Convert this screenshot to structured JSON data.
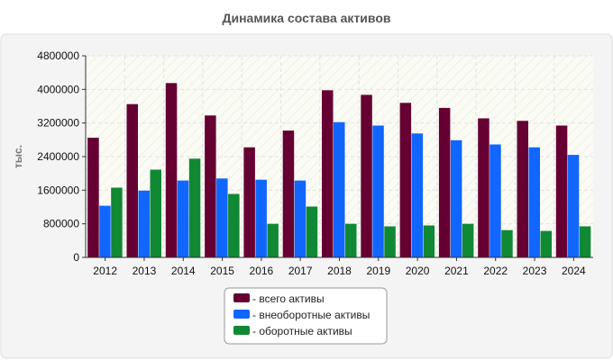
{
  "chart_data": {
    "type": "bar",
    "title": "Динамика состава активов",
    "xlabel": "",
    "ylabel": "тыс.",
    "categories": [
      "2012",
      "2013",
      "2014",
      "2015",
      "2016",
      "2017",
      "2018",
      "2019",
      "2020",
      "2021",
      "2022",
      "2023",
      "2024"
    ],
    "ylim": [
      0,
      4800000
    ],
    "yticks": [
      0,
      800000,
      1600000,
      2400000,
      3200000,
      4000000,
      4800000
    ],
    "grid": true,
    "legend_position": "bottom",
    "series": [
      {
        "name": "- всего активы",
        "color": "#660033",
        "values": [
          2850000,
          3650000,
          4150000,
          3380000,
          2620000,
          3020000,
          3980000,
          3870000,
          3680000,
          3560000,
          3310000,
          3250000,
          3140000
        ]
      },
      {
        "name": "- внеоборотные активы",
        "color": "#1166ff",
        "values": [
          1230000,
          1590000,
          1830000,
          1880000,
          1850000,
          1830000,
          3220000,
          3140000,
          2950000,
          2790000,
          2690000,
          2620000,
          2440000
        ]
      },
      {
        "name": "- оборотные активы",
        "color": "#118833",
        "values": [
          1660000,
          2090000,
          2350000,
          1510000,
          800000,
          1210000,
          800000,
          740000,
          760000,
          800000,
          650000,
          630000,
          740000
        ]
      }
    ]
  }
}
